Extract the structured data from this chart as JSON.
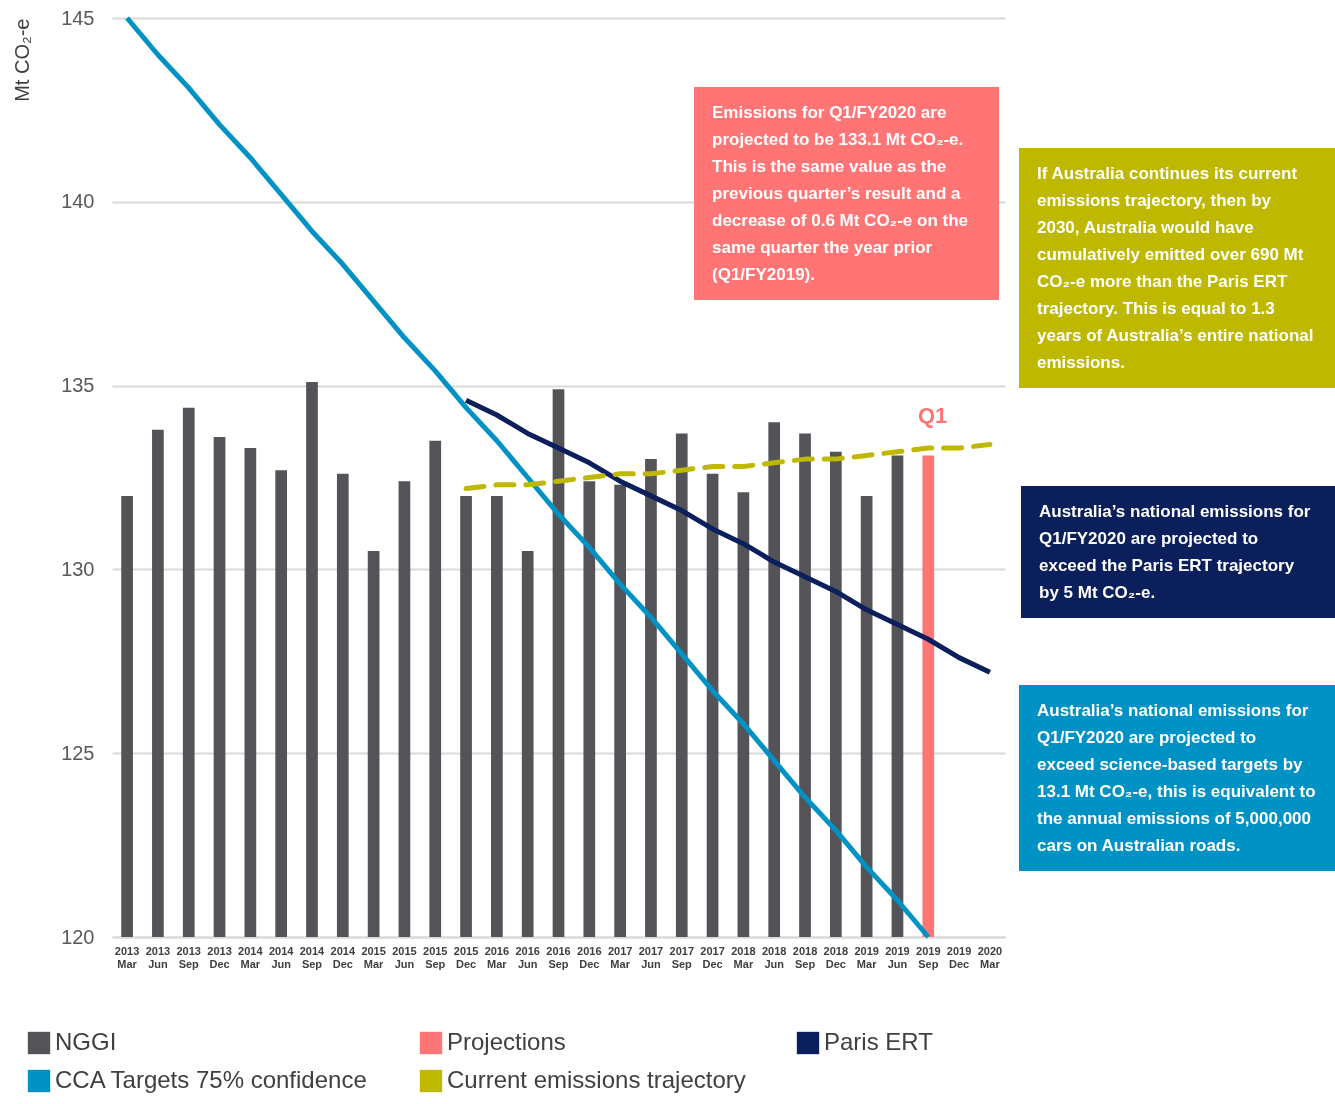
{
  "chart_data": {
    "type": "bar",
    "ylabel": "Mt CO₂-e",
    "categories": [
      "2013 Mar",
      "2013 Jun",
      "2013 Sep",
      "2013 Dec",
      "2014 Mar",
      "2014 Jun",
      "2014 Sep",
      "2014 Dec",
      "2015 Mar",
      "2015 Jun",
      "2015 Sep",
      "2015 Dec",
      "2016 Mar",
      "2016 Jun",
      "2016 Sep",
      "2016 Dec",
      "2017 Mar",
      "2017 Jun",
      "2017 Sep",
      "2017 Dec",
      "2018 Mar",
      "2018 Jun",
      "2018 Sep",
      "2018 Dec",
      "2019 Mar",
      "2019 Jun",
      "2019 Sep",
      "2019 Dec",
      "2020 Mar"
    ],
    "series": [
      {
        "name": "NGGI",
        "color": "#545358",
        "values": [
          132.0,
          133.8,
          134.4,
          133.6,
          133.3,
          132.7,
          135.1,
          132.6,
          130.5,
          132.4,
          133.5,
          132.0,
          132.0,
          130.5,
          134.9,
          132.4,
          132.3,
          133.0,
          133.7,
          132.6,
          132.1,
          134.0,
          133.7,
          133.2,
          132.0,
          133.1,
          null,
          null,
          null
        ]
      },
      {
        "name": "Projections",
        "color": "#ff7575",
        "values": [
          null,
          null,
          null,
          null,
          null,
          null,
          null,
          null,
          null,
          null,
          null,
          null,
          null,
          null,
          null,
          null,
          null,
          null,
          null,
          null,
          null,
          null,
          null,
          null,
          null,
          null,
          133.1,
          null,
          null
        ]
      },
      {
        "name": "Paris ERT",
        "type": "line",
        "color": "#0a1f5c",
        "line_style": "solid",
        "values": [
          null,
          null,
          null,
          null,
          null,
          null,
          null,
          null,
          null,
          null,
          null,
          134.6,
          134.2,
          133.7,
          133.3,
          132.9,
          132.4,
          132.0,
          131.6,
          131.1,
          130.7,
          130.2,
          129.8,
          129.4,
          128.9,
          128.5,
          128.1,
          127.6,
          127.2
        ]
      },
      {
        "name": "CCA Targets 75% confidence",
        "type": "line",
        "color": "#0092c4",
        "line_style": "solid",
        "values": [
          145.0,
          144.0,
          143.1,
          142.1,
          141.2,
          140.2,
          139.2,
          138.3,
          137.3,
          136.3,
          135.4,
          134.4,
          133.5,
          132.5,
          131.5,
          130.6,
          129.6,
          128.7,
          127.7,
          126.7,
          125.8,
          124.8,
          123.8,
          122.9,
          121.9,
          121.0,
          120.0,
          null,
          null
        ]
      },
      {
        "name": "Current emissions trajectory",
        "type": "line",
        "color": "#bfb800",
        "line_style": "dashed",
        "values": [
          null,
          null,
          null,
          null,
          null,
          null,
          null,
          null,
          null,
          null,
          null,
          132.2,
          132.3,
          132.3,
          132.4,
          132.5,
          132.6,
          132.6,
          132.7,
          132.8,
          132.8,
          132.9,
          133.0,
          133.0,
          133.1,
          133.2,
          133.3,
          133.3,
          133.4
        ]
      }
    ],
    "ylim": [
      120,
      145
    ],
    "yticks": [
      120,
      125,
      130,
      135,
      140,
      145
    ],
    "grid": "y",
    "legend": "bottom",
    "annotations": [
      "Emissions for Q1/FY2020 are projected to be 133.1 Mt CO₂-e. This is the same value as the previous quarter’s result and a decrease of 0.6 Mt CO₂-e on the same quarter the year prior (Q1/FY2019).",
      "Q1",
      "If Australia continues its current emissions trajectory, then by 2030, Australia would have cumulatively emitted over 690 Mt CO₂-e more than the Paris ERT trajectory. This is equal to 1.3 years of Australia’s entire national emissions.",
      "Australia’s national emissions for Q1/FY2020 are projected to exceed the Paris ERT trajectory by 5 Mt CO₂-e.",
      "Australia’s national emissions for Q1/FY2020 are projected to exceed science-based targets by 13.1 Mt CO₂-e, this is equivalent to the annual emissions of 5,000,000 cars on Australian roads."
    ]
  }
}
